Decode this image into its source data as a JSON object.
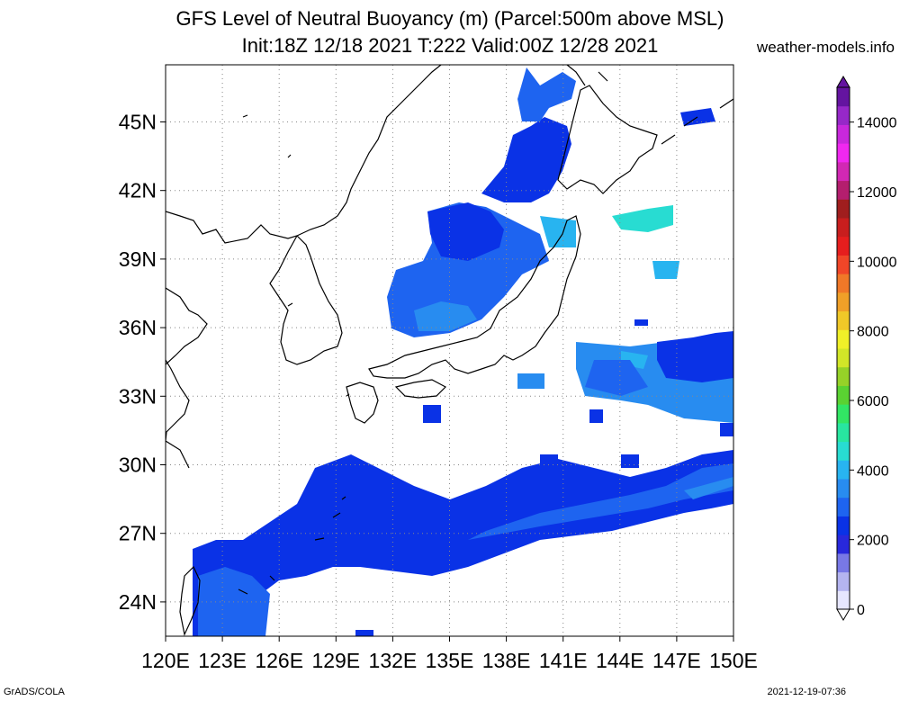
{
  "title": {
    "line1": "GFS Level of Neutral Buoyancy (m) (Parcel:500m above MSL)",
    "line2": "Init:18Z 12/18 2021 T:222 Valid:00Z 12/28 2021"
  },
  "site": "weather-models.info",
  "footer": {
    "left": "GrADS/COLA",
    "right": "2021-12-19-07:36"
  },
  "map": {
    "lon_range": [
      120,
      150
    ],
    "lat_range": [
      22.5,
      47.5
    ],
    "x_ticks": [
      "120E",
      "123E",
      "126E",
      "129E",
      "132E",
      "135E",
      "138E",
      "141E",
      "144E",
      "147E",
      "150E"
    ],
    "y_ticks": [
      "24N",
      "27N",
      "30N",
      "33N",
      "36N",
      "39N",
      "42N",
      "45N"
    ],
    "gridlines": true
  },
  "colorbar": {
    "ticks": [
      "0",
      "2000",
      "4000",
      "6000",
      "8000",
      "10000",
      "12000",
      "14000"
    ],
    "range": [
      0,
      15000
    ],
    "colors": [
      "#e6e6ff",
      "#b4b4f0",
      "#7878e6",
      "#2828dc",
      "#0a32e6",
      "#1e64f0",
      "#288cf0",
      "#28b4f0",
      "#28dcd2",
      "#28e6a0",
      "#32e664",
      "#5ad232",
      "#96d228",
      "#d2e628",
      "#f0f028",
      "#f0c828",
      "#f0a028",
      "#f07828",
      "#f04628",
      "#e61e1e",
      "#c81e1e",
      "#a01e1e",
      "#b41e6e",
      "#d228b4",
      "#f028f0",
      "#c828dc",
      "#9628c8",
      "#6414a0"
    ]
  }
}
